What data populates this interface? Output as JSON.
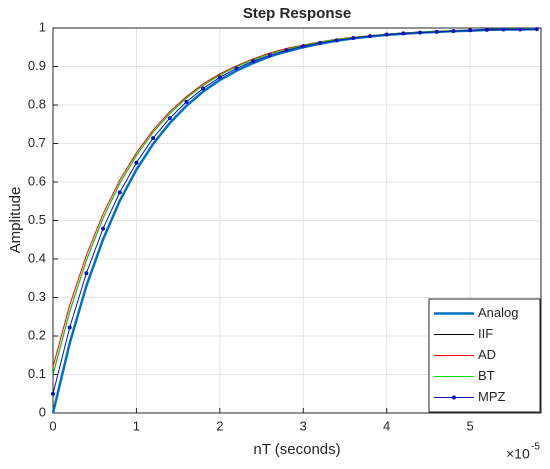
{
  "chart_data": {
    "type": "line",
    "title": "Step Response",
    "x_label": "nT (seconds)",
    "y_label": "Amplitude",
    "x_multiplier_base": "×10",
    "x_multiplier_exponent": "-5",
    "x": [
      0,
      0.2,
      0.4,
      0.6,
      0.8,
      1,
      1.2,
      1.4,
      1.6,
      1.8,
      2,
      2.2,
      2.4,
      2.6,
      2.8,
      3,
      3.2,
      3.4,
      3.6,
      3.8,
      4,
      4.2,
      4.4,
      4.6,
      4.8,
      5,
      5.2,
      5.4,
      5.6,
      5.8
    ],
    "series": [
      {
        "name": "Analog",
        "color": "#0072bd",
        "width": 2.5,
        "markers": false,
        "values": [
          0,
          0.181,
          0.33,
          0.451,
          0.551,
          0.632,
          0.699,
          0.753,
          0.798,
          0.835,
          0.865,
          0.889,
          0.909,
          0.926,
          0.939,
          0.95,
          0.959,
          0.967,
          0.973,
          0.978,
          0.982,
          0.985,
          0.988,
          0.99,
          0.992,
          0.993,
          0.995,
          0.996,
          0.996,
          0.997
        ]
      },
      {
        "name": "IIF",
        "color": "#000000",
        "width": 1,
        "markers": false,
        "values": [
          0.1,
          0.263,
          0.397,
          0.506,
          0.596,
          0.669,
          0.729,
          0.778,
          0.818,
          0.851,
          0.878,
          0.9,
          0.918,
          0.933,
          0.945,
          0.955,
          0.963,
          0.97,
          0.975,
          0.98,
          0.984,
          0.987,
          0.989,
          0.991,
          0.993,
          0.994,
          0.995,
          0.996,
          0.997,
          0.997
        ]
      },
      {
        "name": "AD",
        "color": "#ff0000",
        "width": 1,
        "markers": false,
        "values": [
          0.12,
          0.28,
          0.41,
          0.517,
          0.605,
          0.676,
          0.735,
          0.783,
          0.822,
          0.855,
          0.881,
          0.902,
          0.92,
          0.935,
          0.947,
          0.956,
          0.964,
          0.971,
          0.976,
          0.98,
          0.984,
          0.987,
          0.989,
          0.991,
          0.993,
          0.994,
          0.995,
          0.996,
          0.997,
          0.997
        ]
      },
      {
        "name": "BT",
        "color": "#00dd00",
        "width": 1,
        "markers": false,
        "values": [
          0.1,
          0.263,
          0.397,
          0.506,
          0.596,
          0.669,
          0.729,
          0.778,
          0.818,
          0.851,
          0.878,
          0.9,
          0.918,
          0.933,
          0.945,
          0.955,
          0.963,
          0.97,
          0.975,
          0.98,
          0.984,
          0.987,
          0.989,
          0.991,
          0.993,
          0.994,
          0.995,
          0.996,
          0.997,
          0.997
        ]
      },
      {
        "name": "MPZ",
        "color": "#1010c0",
        "width": 1,
        "markers": true,
        "values": [
          0.05,
          0.222,
          0.363,
          0.479,
          0.573,
          0.65,
          0.714,
          0.766,
          0.808,
          0.843,
          0.872,
          0.895,
          0.914,
          0.929,
          0.942,
          0.953,
          0.961,
          0.968,
          0.974,
          0.979,
          0.983,
          0.986,
          0.988,
          0.99,
          0.992,
          0.994,
          0.995,
          0.996,
          0.996,
          0.997
        ]
      }
    ],
    "xlim": [
      0,
      5.85
    ],
    "xticks": [
      0,
      1,
      2,
      3,
      4,
      5
    ],
    "ylim": [
      0,
      1
    ],
    "yticks": [
      0,
      0.1,
      0.2,
      0.3,
      0.4,
      0.5,
      0.6,
      0.7,
      0.8,
      0.9,
      1
    ],
    "grid": true,
    "legend": "lower right"
  }
}
